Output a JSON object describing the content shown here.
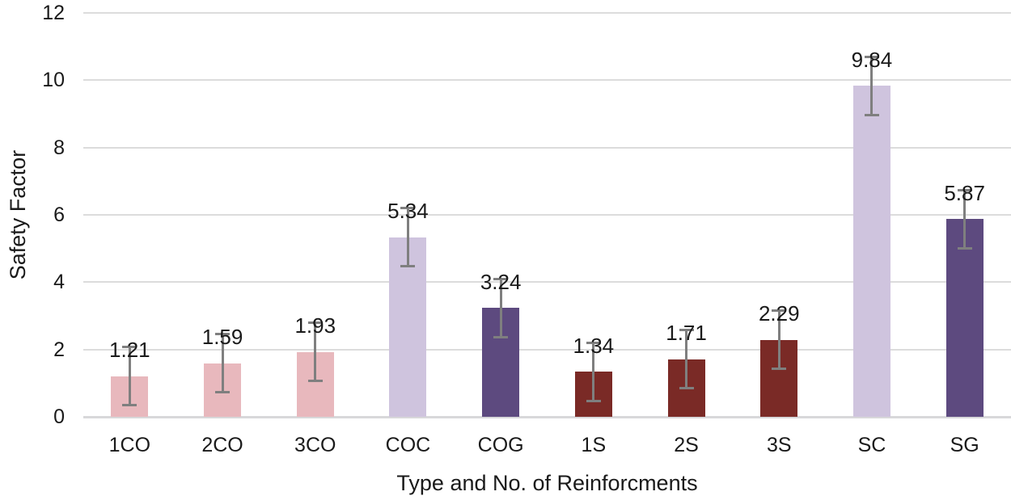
{
  "chart_data": {
    "type": "bar",
    "title": "",
    "xlabel": "Type and No. of Reinforcments",
    "ylabel": "Safety Factor",
    "categories": [
      "1CO",
      "2CO",
      "3CO",
      "COC",
      "COG",
      "1S",
      "2S",
      "3S",
      "SC",
      "SG"
    ],
    "values": [
      1.21,
      1.59,
      1.93,
      5.34,
      3.24,
      1.34,
      1.71,
      2.29,
      9.84,
      5.87
    ],
    "value_labels": [
      "1.21",
      "1.59",
      "1.93",
      "5.34",
      "3.24",
      "1.34",
      "1.71",
      "2.29",
      "9.84",
      "5.87"
    ],
    "error_bars": {
      "plus": 0.9,
      "minus": 0.9
    },
    "bar_colors": [
      "#e8b8bd",
      "#e8b8bd",
      "#e8b8bd",
      "#cfc4de",
      "#5d4a7f",
      "#7a2a26",
      "#7a2a26",
      "#7a2a26",
      "#cfc4de",
      "#5d4a7f"
    ],
    "color_key": {
      "pink": "#e8b8bd",
      "lavender": "#cfc4de",
      "dark_purple": "#5d4a7f",
      "maroon": "#7a2a26"
    },
    "ylim": [
      0,
      12
    ],
    "yticks": [
      0,
      2,
      4,
      6,
      8,
      10,
      12
    ],
    "ytick_labels": [
      "0",
      "2",
      "4",
      "6",
      "8",
      "10",
      "12"
    ],
    "grid": "horizontal",
    "legend": "none",
    "error_bar_color": "#7f7f7f",
    "gridline_color": "#dcdcdc",
    "axis_line_color": "#d8d8da",
    "text_color": "#1a1a1a"
  }
}
